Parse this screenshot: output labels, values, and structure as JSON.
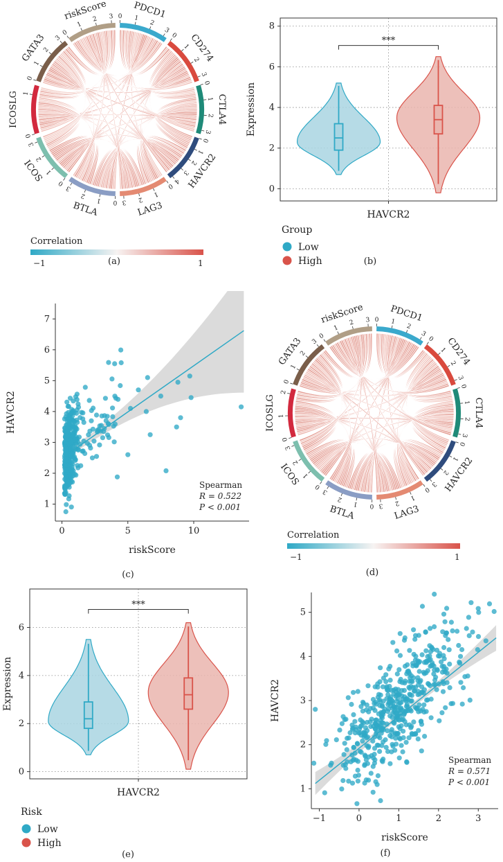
{
  "colors": {
    "teal": "#2FA9C6",
    "red": "#D9534A",
    "pink": "#E8A79E",
    "low_fill": "#A9D5E2",
    "high_fill": "#EAB5AE",
    "grid": "#888888"
  },
  "chord_a": {
    "label": "(a)",
    "legend_title": "Correlation",
    "legend_min": "−1",
    "legend_max": "1",
    "sectors": [
      {
        "name": "PDCD1",
        "color": "#3AA9CC",
        "ticks": [
          "0",
          "1",
          "2",
          "3"
        ]
      },
      {
        "name": "CD274",
        "color": "#D94A3E",
        "ticks": [
          "0",
          "1",
          "2",
          "3"
        ]
      },
      {
        "name": "CTLA4",
        "color": "#1F8A78",
        "ticks": [
          "0",
          "1",
          "2",
          "3"
        ]
      },
      {
        "name": "HAVCR2",
        "color": "#2F4C7D",
        "ticks": [
          "0",
          "1",
          "2",
          "3",
          "4"
        ]
      },
      {
        "name": "LAG3",
        "color": "#E48A72",
        "ticks": [
          "0",
          "1",
          "2",
          "3"
        ]
      },
      {
        "name": "BTLA",
        "color": "#8A9DC4",
        "ticks": [
          "0",
          "1",
          "2",
          "3"
        ]
      },
      {
        "name": "ICOS",
        "color": "#7DBFAE",
        "ticks": [
          "0",
          "1",
          "2",
          "3"
        ]
      },
      {
        "name": "ICOSLG",
        "color": "#D2293E",
        "ticks": [
          "0",
          "1"
        ]
      },
      {
        "name": "GATA3",
        "color": "#7A5E4A",
        "ticks": [
          "0",
          "1",
          "2",
          "3"
        ]
      },
      {
        "name": "riskScore",
        "color": "#B09E86",
        "ticks": [
          "0",
          "1",
          "2",
          "3"
        ]
      }
    ]
  },
  "chord_d": {
    "label": "(d)",
    "legend_title": "Correlation",
    "legend_min": "−1",
    "legend_max": "1",
    "sectors": [
      {
        "name": "PDCD1",
        "color": "#3AA9CC",
        "ticks": [
          "0",
          "1",
          "2",
          "3"
        ]
      },
      {
        "name": "CD274",
        "color": "#D94A3E",
        "ticks": [
          "0",
          "1",
          "2",
          "3"
        ]
      },
      {
        "name": "CTLA4",
        "color": "#1F8A78",
        "ticks": [
          "0",
          "1",
          "2",
          "3"
        ]
      },
      {
        "name": "HAVCR2",
        "color": "#2F4C7D",
        "ticks": [
          "0",
          "1",
          "2",
          "3"
        ]
      },
      {
        "name": "LAG3",
        "color": "#E48A72",
        "ticks": [
          "0",
          "1",
          "2",
          "3"
        ]
      },
      {
        "name": "BTLA",
        "color": "#8A9DC4",
        "ticks": [
          "0",
          "1",
          "2",
          "3"
        ]
      },
      {
        "name": "ICOS",
        "color": "#7DBFAE",
        "ticks": [
          "0",
          "1",
          "2",
          "3"
        ]
      },
      {
        "name": "ICOSLG",
        "color": "#D2293E",
        "ticks": [
          "0",
          "1",
          "2"
        ]
      },
      {
        "name": "GATA3",
        "color": "#7A5E4A",
        "ticks": [
          "0",
          "1",
          "2",
          "3"
        ]
      },
      {
        "name": "riskScore",
        "color": "#B09E86",
        "ticks": [
          "0",
          "1",
          "2",
          "3"
        ]
      }
    ]
  },
  "chart_data": [
    {
      "id": "b",
      "type": "violin",
      "panel_label": "(b)",
      "title": "",
      "xlabel": "HAVCR2",
      "ylabel": "Expression",
      "ylim": [
        -0.6,
        8.4
      ],
      "yticks": [
        "0",
        "2",
        "4",
        "6",
        "8"
      ],
      "significance": "***",
      "legend_title": "Group",
      "groups": [
        {
          "name": "Low",
          "color": "#2FA9C6",
          "fill": "#A9D5E2",
          "min": 0.7,
          "q1": 1.9,
          "median": 2.5,
          "q3": 3.2,
          "max": 5.2,
          "mode": 2.3
        },
        {
          "name": "High",
          "color": "#D9534A",
          "fill": "#EAB5AE",
          "min": -0.2,
          "q1": 2.7,
          "median": 3.4,
          "q3": 4.1,
          "max": 6.5,
          "mode": 3.5
        }
      ]
    },
    {
      "id": "c",
      "type": "scatter",
      "panel_label": "(c)",
      "xlabel": "riskScore",
      "ylabel": "HAVCR2",
      "xlim": [
        -0.5,
        14.2
      ],
      "ylim": [
        0.45,
        7.5
      ],
      "xticks": [
        "0",
        "5",
        "10"
      ],
      "yticks": [
        "1",
        "2",
        "3",
        "4",
        "5",
        "6",
        "7"
      ],
      "annotation": {
        "method": "Spearman",
        "r": "R = 0.522",
        "p": "P < 0.001"
      },
      "fit": {
        "x0": 0.2,
        "y0": 2.55,
        "x1": 13.8,
        "y1": 6.62
      }
    },
    {
      "id": "e",
      "type": "violin",
      "panel_label": "(e)",
      "title": "",
      "xlabel": "HAVCR2",
      "ylabel": "Expression",
      "ylim": [
        -0.3,
        7.6
      ],
      "yticks": [
        "0",
        "2",
        "4",
        "6"
      ],
      "significance": "***",
      "legend_title": "Risk",
      "groups": [
        {
          "name": "Low",
          "color": "#2FA9C6",
          "fill": "#A9D5E2",
          "min": 0.7,
          "q1": 1.8,
          "median": 2.2,
          "q3": 2.9,
          "max": 5.5,
          "mode": 2.1
        },
        {
          "name": "High",
          "color": "#D9534A",
          "fill": "#EAB5AE",
          "min": 0.1,
          "q1": 2.6,
          "median": 3.2,
          "q3": 3.9,
          "max": 6.2,
          "mode": 3.3
        }
      ]
    },
    {
      "id": "f",
      "type": "scatter",
      "panel_label": "(f)",
      "xlabel": "riskScore",
      "ylabel": "HAVCR2",
      "xlim": [
        -1.2,
        3.5
      ],
      "ylim": [
        0.55,
        5.45
      ],
      "xticks": [
        "−1",
        "0",
        "1",
        "2",
        "3"
      ],
      "yticks": [
        "1",
        "2",
        "3",
        "4",
        "5"
      ],
      "annotation": {
        "method": "Spearman",
        "r": "R = 0.571",
        "p": "P < 0.001"
      },
      "fit": {
        "x0": -1.1,
        "y0": 1.12,
        "x1": 3.45,
        "y1": 4.42
      }
    }
  ]
}
